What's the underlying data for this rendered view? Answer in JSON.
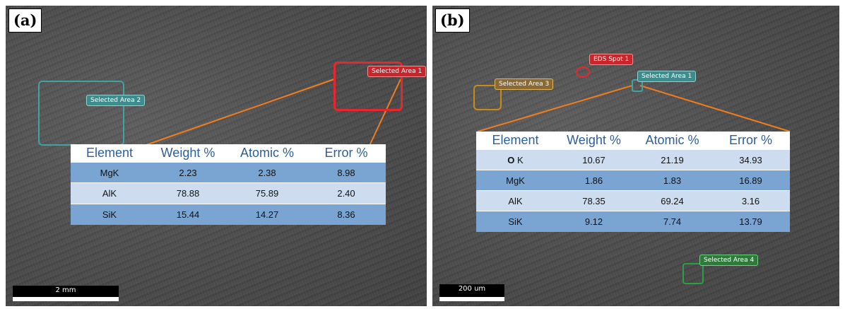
{
  "panel_a": {
    "label": "(a)",
    "areas": [
      {
        "id": "area2",
        "label": "Selected Area 2",
        "color": "#3fa3a3"
      },
      {
        "id": "area1",
        "label": "Selected Area 1",
        "color": "#e8262e"
      }
    ],
    "table": {
      "headers": [
        "Element",
        "Weight %",
        "Atomic %",
        "Error %"
      ],
      "rows": [
        [
          "MgK",
          "2.23",
          "2.38",
          "8.98"
        ],
        [
          "AlK",
          "78.88",
          "75.89",
          "2.40"
        ],
        [
          "SiK",
          "15.44",
          "14.27",
          "8.36"
        ]
      ]
    },
    "scalebar": "2 mm"
  },
  "panel_b": {
    "label": "(b)",
    "areas": [
      {
        "id": "spot1",
        "label": "EDS Spot 1",
        "color": "#e8262e"
      },
      {
        "id": "area1",
        "label": "Selected Area 1",
        "color": "#3fa3a3"
      },
      {
        "id": "area3",
        "label": "Selected Area 3",
        "color": "#c98a16"
      },
      {
        "id": "area4",
        "label": "Selected Area 4",
        "color": "#28a043"
      }
    ],
    "table": {
      "headers": [
        "Element",
        "Weight %",
        "Atomic %",
        "Error %"
      ],
      "rows": [
        [
          "O",
          "10.67",
          "21.19",
          "34.93"
        ],
        [
          "MgK",
          "1.86",
          "1.83",
          "16.89"
        ],
        [
          "AlK",
          "78.35",
          "69.24",
          "3.16"
        ],
        [
          "SiK",
          "9.12",
          "7.74",
          "13.79"
        ]
      ],
      "first_cell_suffix": " K"
    },
    "scalebar": "200 um"
  },
  "colors": {
    "leader_line": "#f07d1e",
    "table_header_text": "#2e5f95",
    "row_dark": "#7aa5d2",
    "row_light": "#cdddef"
  }
}
